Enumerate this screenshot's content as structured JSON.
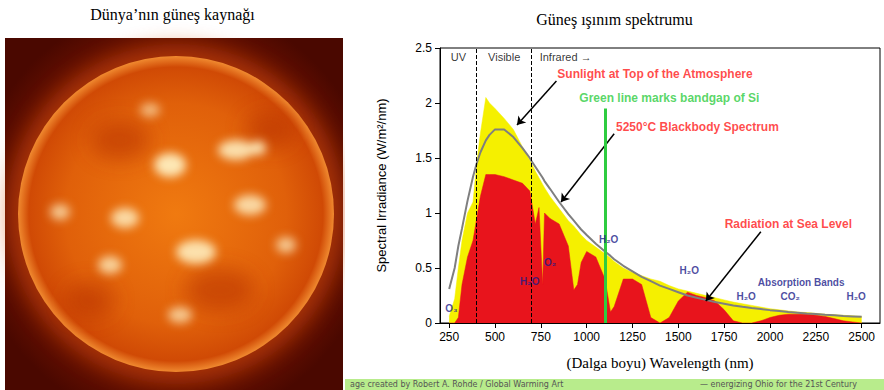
{
  "left_panel": {
    "title": "Dünya’nın güneş kaynağı"
  },
  "chart_data": {
    "type": "line",
    "title": "Güneş ışınım spektrumu",
    "x_label": "(Dalga boyu) Wavelength (nm)",
    "y_label": "Spectral Irradiance (W/m²/nm)",
    "x": [
      250,
      280,
      300,
      320,
      350,
      380,
      400,
      420,
      450,
      470,
      500,
      550,
      600,
      650,
      690,
      700,
      720,
      740,
      760,
      770,
      800,
      850,
      900,
      930,
      950,
      970,
      1000,
      1050,
      1100,
      1130,
      1150,
      1200,
      1250,
      1300,
      1350,
      1400,
      1450,
      1500,
      1550,
      1600,
      1650,
      1700,
      1750,
      1800,
      1850,
      1900,
      1950,
      2000,
      2050,
      2100,
      2150,
      2200,
      2250,
      2300,
      2350,
      2400,
      2450,
      2500
    ],
    "series": [
      {
        "name": "Sunlight at Top of the Atmosphere",
        "type": "area",
        "color": "#f5f000",
        "values": [
          0.06,
          0.22,
          0.5,
          0.75,
          1,
          1.1,
          1.45,
          1.72,
          2.05,
          2.0,
          1.95,
          1.86,
          1.76,
          1.6,
          1.48,
          1.45,
          1.38,
          1.32,
          1.26,
          1.23,
          1.15,
          1.04,
          0.93,
          0.88,
          0.84,
          0.8,
          0.75,
          0.69,
          0.63,
          0.59,
          0.56,
          0.5,
          0.46,
          0.43,
          0.4,
          0.38,
          0.34,
          0.31,
          0.29,
          0.27,
          0.25,
          0.23,
          0.21,
          0.19,
          0.175,
          0.16,
          0.145,
          0.13,
          0.12,
          0.11,
          0.1,
          0.095,
          0.088,
          0.08,
          0.075,
          0.07,
          0.065,
          0.06
        ]
      },
      {
        "name": "Radiation at Sea Level",
        "type": "area",
        "color": "#e8141c",
        "values": [
          0,
          0,
          0.05,
          0.35,
          0.6,
          0.75,
          0.95,
          1.15,
          1.35,
          1.35,
          1.35,
          1.33,
          1.3,
          1.27,
          1.2,
          1.1,
          0.9,
          1.05,
          0.35,
          1.0,
          0.95,
          0.9,
          0.7,
          0.3,
          0.35,
          0.55,
          0.65,
          0.6,
          0.4,
          0.1,
          0.15,
          0.4,
          0.4,
          0.35,
          0.05,
          0,
          0.05,
          0.2,
          0.28,
          0.25,
          0.23,
          0.2,
          0.12,
          0.02,
          0,
          0,
          0.02,
          0.05,
          0.07,
          0.08,
          0.08,
          0.08,
          0.07,
          0.06,
          0.04,
          0.02,
          0.01,
          0
        ]
      },
      {
        "name": "5250°C Blackbody Spectrum",
        "type": "line",
        "color": "#7f7f7f",
        "values": [
          0.31,
          0.5,
          0.7,
          0.86,
          1.11,
          1.33,
          1.45,
          1.55,
          1.66,
          1.71,
          1.76,
          1.76,
          1.69,
          1.59,
          1.5,
          1.47,
          1.42,
          1.37,
          1.32,
          1.29,
          1.22,
          1.1,
          0.99,
          0.93,
          0.89,
          0.85,
          0.8,
          0.72,
          0.65,
          0.61,
          0.58,
          0.52,
          0.47,
          0.42,
          0.38,
          0.34,
          0.31,
          0.28,
          0.25,
          0.23,
          0.21,
          0.19,
          0.175,
          0.16,
          0.148,
          0.137,
          0.127,
          0.117,
          0.109,
          0.101,
          0.094,
          0.086,
          0.081,
          0.075,
          0.07,
          0.064,
          0.06,
          0.056
        ]
      }
    ],
    "xlim": [
      200,
      2600
    ],
    "xticks": [
      250,
      500,
      750,
      1000,
      1250,
      1500,
      1750,
      2000,
      2250,
      2500
    ],
    "ylim": [
      0,
      2.5
    ],
    "yticks": [
      0,
      0.5,
      1,
      1.5,
      2,
      2.5
    ],
    "grid": false,
    "regions": [
      {
        "label": "UV",
        "end": 400
      },
      {
        "label": "Visible",
        "start": 400,
        "end": 700
      },
      {
        "label": "Infrared →",
        "start": 700
      }
    ],
    "markers": [
      {
        "x": 1100,
        "label": "Green line marks bandgap of Si",
        "color": "#2ecc40"
      }
    ],
    "annotations": [
      "O₃",
      "H₂O",
      "O₂",
      "H₂O",
      "H₂O",
      "H₂O",
      "Absorption Bands",
      "CO₂",
      "H₂O"
    ]
  },
  "credits": [
    "age created by Robert A. Rohde / Global Warming Art",
    "— energizing Ohio for the 21st Century"
  ]
}
